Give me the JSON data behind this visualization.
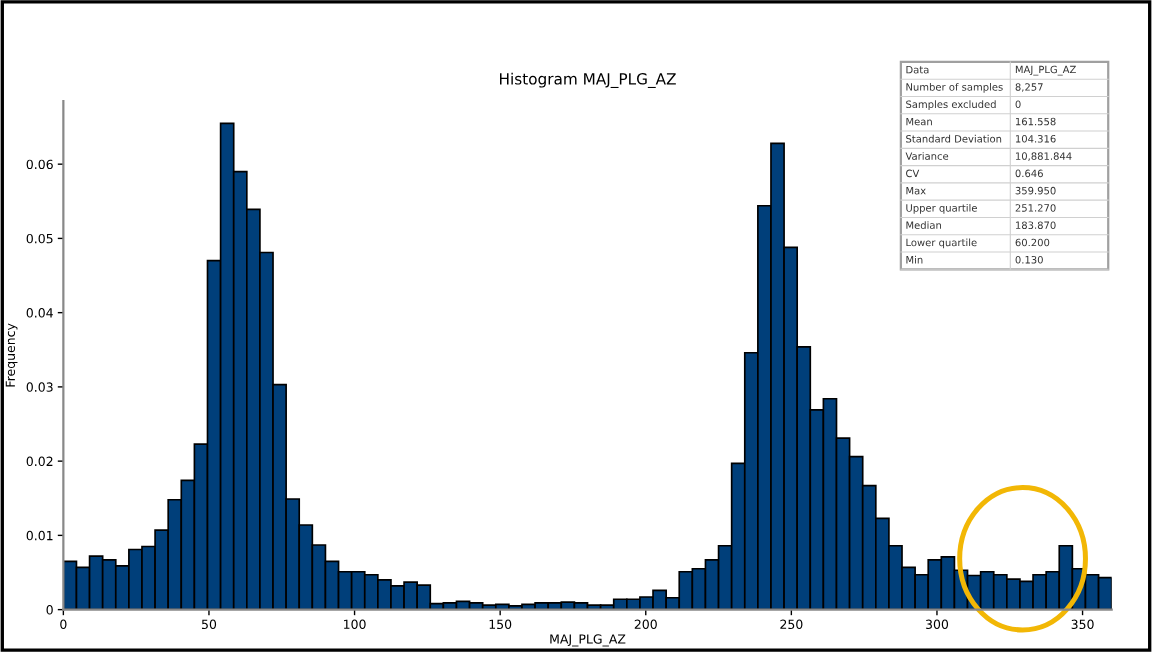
{
  "chart_data": {
    "type": "histogram",
    "title": "Histogram MAJ_PLG_AZ",
    "xlabel": "MAJ_PLG_AZ",
    "ylabel": "Frequency",
    "bins": [
      0,
      4.5,
      9,
      13.5,
      18,
      22.5,
      27,
      31.5,
      36,
      40.5,
      45,
      49.5,
      54,
      58.5,
      63,
      67.5,
      72,
      76.5,
      81,
      85.5,
      90,
      94.5,
      99,
      103.5,
      108,
      112.5,
      117,
      121.5,
      126,
      130.5,
      135,
      139.5,
      144,
      148.5,
      153,
      157.5,
      162,
      166.5,
      171,
      175.5,
      180,
      184.5,
      189,
      193.5,
      198,
      202.5,
      207,
      211.5,
      216,
      220.5,
      225,
      229.5,
      234,
      238.5,
      243,
      247.5,
      252,
      256.5,
      261,
      265.5,
      270,
      274.5,
      279,
      283.5,
      288,
      292.5,
      297,
      301.5,
      306,
      310.5,
      315,
      319.5,
      324,
      328.5,
      333,
      337.5,
      342,
      346.5,
      351,
      355.5,
      360
    ],
    "values": [
      0.0065,
      0.0057,
      0.0072,
      0.0067,
      0.0059,
      0.0081,
      0.0085,
      0.0107,
      0.0148,
      0.0174,
      0.0223,
      0.047,
      0.0655,
      0.059,
      0.0539,
      0.0481,
      0.0303,
      0.0149,
      0.0114,
      0.0087,
      0.0065,
      0.0051,
      0.0051,
      0.0047,
      0.004,
      0.0032,
      0.0037,
      0.0033,
      0.0008,
      0.0009,
      0.0011,
      0.0009,
      0.0006,
      0.0007,
      0.0005,
      0.0007,
      0.0009,
      0.0009,
      0.001,
      0.0009,
      0.0006,
      0.0006,
      0.0014,
      0.0014,
      0.0017,
      0.0026,
      0.0016,
      0.0051,
      0.0055,
      0.0067,
      0.0086,
      0.0197,
      0.0346,
      0.0544,
      0.0628,
      0.0488,
      0.0354,
      0.0269,
      0.0284,
      0.0231,
      0.0206,
      0.0167,
      0.0123,
      0.0086,
      0.0057,
      0.0047,
      0.0067,
      0.0071,
      0.0053,
      0.0046,
      0.0051,
      0.0047,
      0.0041,
      0.0038,
      0.0047,
      0.0051,
      0.0086,
      0.0055,
      0.0047,
      0.0043
    ],
    "color": "#003f7a",
    "xlim": [
      0,
      360
    ],
    "ylim": [
      0,
      0.0685
    ],
    "xticks": [
      0,
      50,
      100,
      150,
      200,
      250,
      300,
      350
    ],
    "yticks": [
      0,
      0.01,
      0.02,
      0.03,
      0.04,
      0.05,
      0.06
    ],
    "annotations": [
      "Data",
      "MAJ_PLG_AZ",
      "Number of samples",
      "8,257",
      "Samples excluded",
      "0",
      "Mean",
      "161.558",
      "Standard Deviation",
      "104.316",
      "Variance",
      "10,881.844",
      "CV",
      "0.646",
      "Max",
      "359.950",
      "Upper quartile",
      "251.270",
      "Median",
      "183.870",
      "Lower quartile",
      "60.200",
      "Min",
      "0.130"
    ],
    "grid": false
  }
}
